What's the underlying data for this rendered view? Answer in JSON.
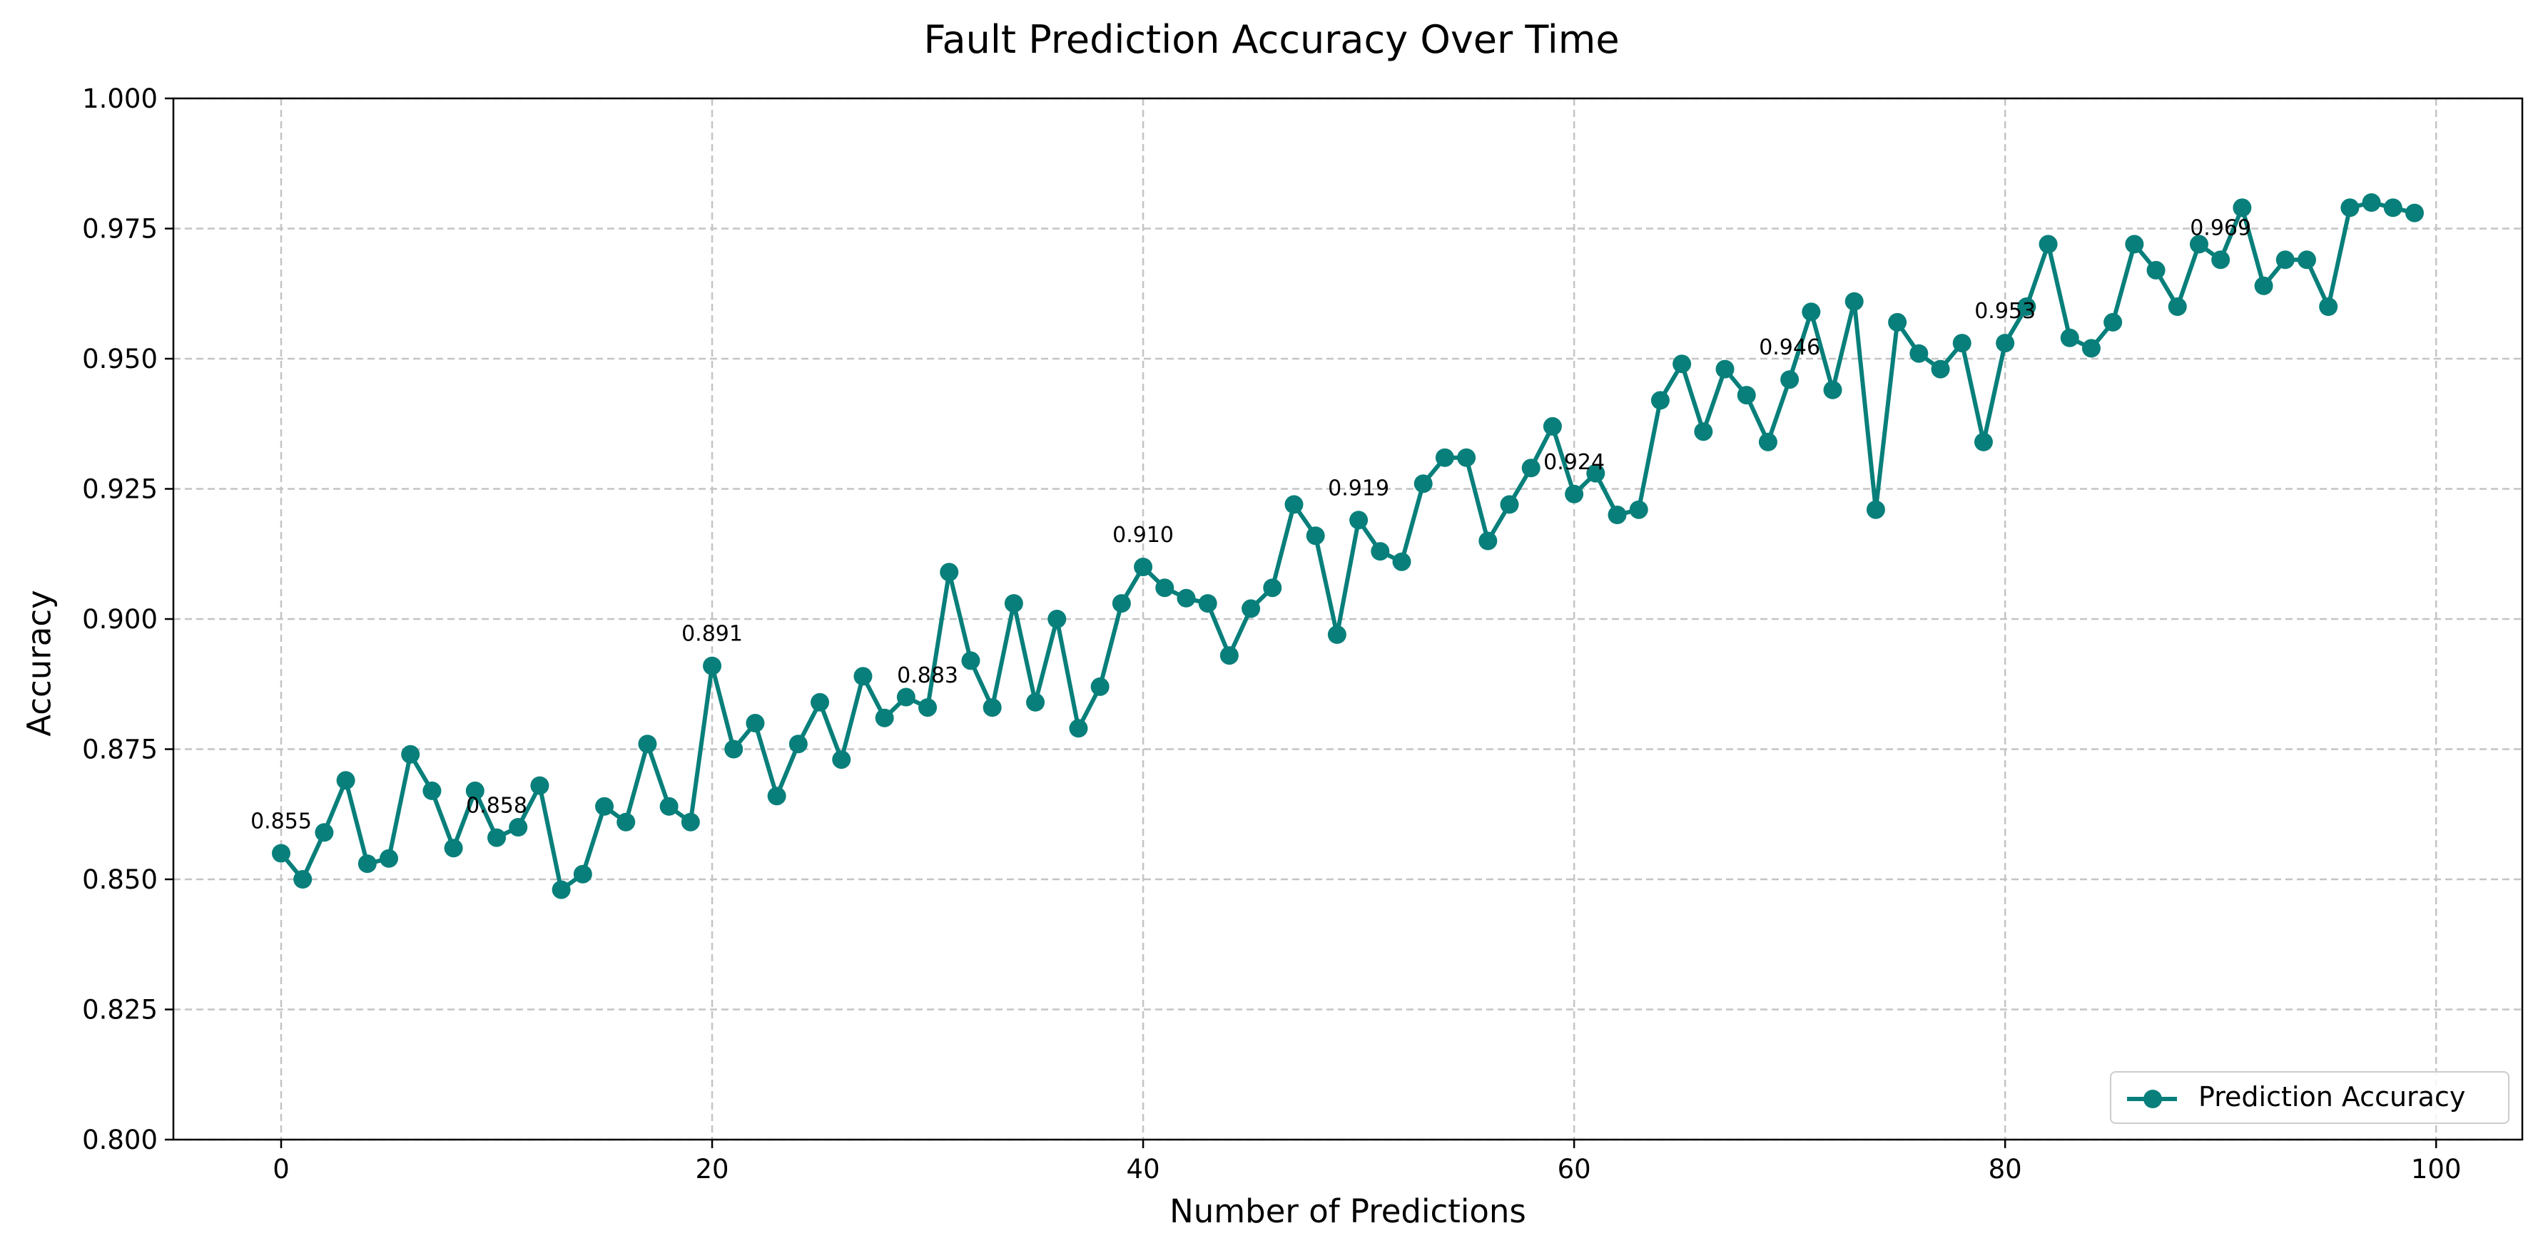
{
  "chart_data": {
    "type": "line",
    "title": "Fault Prediction Accuracy Over Time",
    "xlabel": "Number of Predictions",
    "ylabel": "Accuracy",
    "xlim": [
      -5,
      104
    ],
    "ylim": [
      0.8,
      1.0
    ],
    "x_ticks": [
      "0",
      "20",
      "40",
      "60",
      "80",
      "100"
    ],
    "y_ticks": [
      "0.800",
      "0.825",
      "0.850",
      "0.875",
      "0.900",
      "0.925",
      "0.950",
      "0.975",
      "1.000"
    ],
    "grid": true,
    "legend_position": "lower-right",
    "color": "#087f7a",
    "series": [
      {
        "name": "Prediction Accuracy",
        "x": [
          0,
          1,
          2,
          3,
          4,
          5,
          6,
          7,
          8,
          9,
          10,
          11,
          12,
          13,
          14,
          15,
          16,
          17,
          18,
          19,
          20,
          21,
          22,
          23,
          24,
          25,
          26,
          27,
          28,
          29,
          30,
          31,
          32,
          33,
          34,
          35,
          36,
          37,
          38,
          39,
          40,
          41,
          42,
          43,
          44,
          45,
          46,
          47,
          48,
          49,
          50,
          51,
          52,
          53,
          54,
          55,
          56,
          57,
          58,
          59,
          60,
          61,
          62,
          63,
          64,
          65,
          66,
          67,
          68,
          69,
          70,
          71,
          72,
          73,
          74,
          75,
          76,
          77,
          78,
          79,
          80,
          81,
          82,
          83,
          84,
          85,
          86,
          87,
          88,
          89,
          90,
          91,
          92,
          93,
          94,
          95,
          96,
          97,
          98,
          99
        ],
        "values": [
          0.855,
          0.85,
          0.859,
          0.869,
          0.853,
          0.854,
          0.874,
          0.867,
          0.856,
          0.867,
          0.858,
          0.86,
          0.868,
          0.848,
          0.851,
          0.864,
          0.861,
          0.876,
          0.864,
          0.861,
          0.891,
          0.875,
          0.88,
          0.866,
          0.876,
          0.884,
          0.873,
          0.889,
          0.881,
          0.885,
          0.883,
          0.909,
          0.892,
          0.883,
          0.903,
          0.884,
          0.9,
          0.879,
          0.887,
          0.903,
          0.91,
          0.906,
          0.904,
          0.903,
          0.893,
          0.902,
          0.906,
          0.922,
          0.916,
          0.897,
          0.919,
          0.913,
          0.911,
          0.926,
          0.931,
          0.931,
          0.915,
          0.922,
          0.929,
          0.937,
          0.924,
          0.928,
          0.92,
          0.921,
          0.942,
          0.949,
          0.936,
          0.948,
          0.943,
          0.934,
          0.946,
          0.959,
          0.944,
          0.961,
          0.921,
          0.957,
          0.951,
          0.948,
          0.953,
          0.934,
          0.953,
          0.96,
          0.972,
          0.954,
          0.952,
          0.957,
          0.972,
          0.967,
          0.96,
          0.972,
          0.969,
          0.979,
          0.964,
          0.969,
          0.969,
          0.96,
          0.979,
          0.98,
          0.979,
          0.978
        ]
      }
    ],
    "annotations": [
      {
        "x": 0,
        "text": "0.855"
      },
      {
        "x": 10,
        "text": "0.858"
      },
      {
        "x": 20,
        "text": "0.891"
      },
      {
        "x": 30,
        "text": "0.883"
      },
      {
        "x": 40,
        "text": "0.910"
      },
      {
        "x": 50,
        "text": "0.919"
      },
      {
        "x": 60,
        "text": "0.924"
      },
      {
        "x": 70,
        "text": "0.946"
      },
      {
        "x": 80,
        "text": "0.953"
      },
      {
        "x": 90,
        "text": "0.969"
      }
    ]
  }
}
